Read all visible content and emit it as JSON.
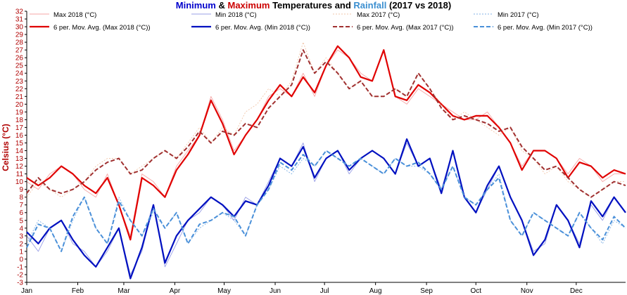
{
  "chart_data": {
    "type": "line",
    "title": {
      "parts": [
        {
          "text": "Minimum",
          "color": "#0000cc"
        },
        {
          "text": " & ",
          "color": "#000000"
        },
        {
          "text": "Maximum",
          "color": "#cc0000"
        },
        {
          "text": " Temperatures and ",
          "color": "#000000"
        },
        {
          "text": "Rainfall",
          "color": "#3b8fd0"
        },
        {
          "text": " (2017 vs 2018)",
          "color": "#000000"
        }
      ]
    },
    "ylabel": "Celsius (°C)",
    "ylim": [
      -3,
      32
    ],
    "yticks": [
      -3,
      -2,
      -1,
      0,
      1,
      2,
      3,
      4,
      5,
      6,
      7,
      8,
      9,
      10,
      11,
      12,
      13,
      14,
      15,
      16,
      17,
      18,
      19,
      20,
      21,
      22,
      23,
      24,
      25,
      26,
      27,
      28,
      29,
      30,
      31,
      32
    ],
    "xlim": [
      1,
      365
    ],
    "months": [
      "Jan",
      "Feb",
      "Mar",
      "Apr",
      "May",
      "Jun",
      "Jul",
      "Aug",
      "Sep",
      "Oct",
      "Nov",
      "Dec"
    ],
    "month_starts": [
      1,
      32,
      60,
      91,
      121,
      152,
      182,
      213,
      244,
      274,
      305,
      335
    ],
    "grid": false,
    "legend": "top",
    "colors": {
      "max2018": "#e00000",
      "min2018": "#0010c0",
      "max2017": "#a03030",
      "min2017": "#4a90d9"
    },
    "series": [
      {
        "name": "Max 2018 (°C)",
        "x": [
          1,
          8,
          15,
          22,
          29,
          36,
          43,
          50,
          57,
          64,
          71,
          78,
          85,
          92,
          99,
          106,
          113,
          120,
          127,
          134,
          141,
          148,
          155,
          162,
          169,
          176,
          183,
          190,
          197,
          204,
          211,
          218,
          225,
          232,
          239,
          246,
          253,
          260,
          267,
          274,
          281,
          288,
          295,
          302,
          309,
          316,
          323,
          330,
          337,
          344,
          351,
          358,
          365
        ],
        "values": [
          10,
          9,
          11,
          12,
          11,
          9,
          8,
          11,
          7,
          3,
          11,
          10,
          8,
          12,
          14,
          16,
          21,
          18,
          14,
          16,
          18,
          21,
          22,
          21,
          24,
          21,
          25,
          27,
          26,
          24,
          23,
          27,
          21,
          20,
          22,
          21,
          20,
          19,
          18,
          18,
          19,
          17,
          15,
          12,
          14,
          14,
          13,
          11,
          13,
          12,
          10,
          11,
          11
        ]
      },
      {
        "name": "6 per. Mov. Avg. (Max 2018 (°C))",
        "x": [
          1,
          8,
          15,
          22,
          29,
          36,
          43,
          50,
          57,
          64,
          71,
          78,
          85,
          92,
          99,
          106,
          113,
          120,
          127,
          134,
          141,
          148,
          155,
          162,
          169,
          176,
          183,
          190,
          197,
          204,
          211,
          218,
          225,
          232,
          239,
          246,
          253,
          260,
          267,
          274,
          281,
          288,
          295,
          302,
          309,
          316,
          323,
          330,
          337,
          344,
          351,
          358,
          365
        ],
        "values": [
          10.5,
          9.5,
          10.5,
          12,
          11,
          9.5,
          8.5,
          10.5,
          7,
          2.5,
          10.5,
          9.5,
          8,
          11.5,
          13.5,
          16,
          20.5,
          17.5,
          13.5,
          16,
          18,
          20.5,
          22.5,
          21,
          23.5,
          21.5,
          25,
          27.5,
          26,
          23.5,
          23,
          27,
          21,
          20.5,
          22.5,
          21.5,
          20,
          18.5,
          18,
          18.5,
          18.5,
          17,
          15,
          11.5,
          14,
          14,
          13,
          10.5,
          12.5,
          12,
          10.5,
          11.5,
          11
        ]
      },
      {
        "name": "Min 2018 (°C)",
        "x": [
          1,
          8,
          15,
          22,
          29,
          36,
          43,
          50,
          57,
          64,
          71,
          78,
          85,
          92,
          99,
          106,
          113,
          120,
          127,
          134,
          141,
          148,
          155,
          162,
          169,
          176,
          183,
          190,
          197,
          204,
          211,
          218,
          225,
          232,
          239,
          246,
          253,
          260,
          267,
          274,
          281,
          288,
          295,
          302,
          309,
          316,
          323,
          330,
          337,
          344,
          351,
          358,
          365
        ],
        "values": [
          3,
          1,
          4,
          5,
          2,
          1,
          -1,
          1,
          4,
          -2,
          1,
          7,
          -1,
          2,
          5,
          6,
          8,
          7,
          5,
          8,
          7,
          10,
          13,
          12,
          15,
          10,
          13,
          14,
          11,
          13,
          14,
          13,
          11,
          15,
          12,
          13,
          9,
          14,
          8,
          6,
          9,
          12,
          8,
          5,
          1,
          2,
          7,
          5,
          2,
          7,
          5,
          8,
          6
        ]
      },
      {
        "name": "6 per. Mov. Avg. (Min 2018 (°C))",
        "x": [
          1,
          8,
          15,
          22,
          29,
          36,
          43,
          50,
          57,
          64,
          71,
          78,
          85,
          92,
          99,
          106,
          113,
          120,
          127,
          134,
          141,
          148,
          155,
          162,
          169,
          176,
          183,
          190,
          197,
          204,
          211,
          218,
          225,
          232,
          239,
          246,
          253,
          260,
          267,
          274,
          281,
          288,
          295,
          302,
          309,
          316,
          323,
          330,
          337,
          344,
          351,
          358,
          365
        ],
        "values": [
          3.5,
          2,
          4,
          5,
          2.5,
          0.5,
          -1,
          1.5,
          4,
          -2.5,
          1.5,
          7,
          -0.5,
          3,
          5,
          6.5,
          8,
          7,
          5.5,
          7.5,
          7,
          9.5,
          13,
          12,
          14.5,
          10.5,
          13,
          14,
          11.5,
          13,
          14,
          13,
          11,
          15.5,
          12,
          13,
          8.5,
          14,
          8,
          6,
          9.5,
          12,
          8,
          5,
          0.5,
          2.5,
          7,
          5,
          1.5,
          7.5,
          5.5,
          8,
          6
        ]
      },
      {
        "name": "Max 2017 (°C)",
        "x": [
          1,
          8,
          15,
          22,
          29,
          36,
          43,
          50,
          57,
          64,
          71,
          78,
          85,
          92,
          99,
          106,
          113,
          120,
          127,
          134,
          141,
          148,
          155,
          162,
          169,
          176,
          183,
          190,
          197,
          204,
          211,
          218,
          225,
          232,
          239,
          246,
          253,
          260,
          267,
          274,
          281,
          288,
          295,
          302,
          309,
          316,
          323,
          330,
          337,
          344,
          351,
          358,
          365
        ],
        "values": [
          8,
          10,
          9,
          8,
          9,
          10,
          12,
          13,
          13,
          11,
          12,
          13,
          14,
          13,
          15,
          17,
          15,
          17,
          16,
          19,
          20,
          22,
          21,
          23,
          28,
          24,
          26,
          24,
          22,
          23,
          21,
          21,
          22,
          21,
          24,
          22,
          20,
          18,
          19,
          18,
          17,
          16,
          17,
          14,
          13,
          11,
          12,
          10,
          9,
          8,
          9,
          10,
          10
        ]
      },
      {
        "name": "6 per. Mov. Avg. (Max 2017 (°C))",
        "x": [
          1,
          8,
          15,
          22,
          29,
          36,
          43,
          50,
          57,
          64,
          71,
          78,
          85,
          92,
          99,
          106,
          113,
          120,
          127,
          134,
          141,
          148,
          155,
          162,
          169,
          176,
          183,
          190,
          197,
          204,
          211,
          218,
          225,
          232,
          239,
          246,
          253,
          260,
          267,
          274,
          281,
          288,
          295,
          302,
          309,
          316,
          323,
          330,
          337,
          344,
          351,
          358,
          365
        ],
        "values": [
          8.5,
          10.5,
          9,
          8.5,
          9,
          10,
          11.5,
          12.5,
          13,
          11,
          11.5,
          13,
          14,
          13,
          14.5,
          16.5,
          15,
          16.5,
          16,
          17.5,
          17,
          19.5,
          21,
          22.5,
          27,
          24,
          25.5,
          24,
          22,
          23,
          21,
          21,
          22,
          21,
          24,
          22,
          19.5,
          18,
          18.5,
          18,
          17.5,
          16.5,
          17,
          14.5,
          13,
          11.5,
          12,
          10.5,
          9,
          8,
          9,
          10,
          9.5
        ]
      },
      {
        "name": "Min 2017 (°C)",
        "x": [
          1,
          8,
          15,
          22,
          29,
          36,
          43,
          50,
          57,
          64,
          71,
          78,
          85,
          92,
          99,
          106,
          113,
          120,
          127,
          134,
          141,
          148,
          155,
          162,
          169,
          176,
          183,
          190,
          197,
          204,
          211,
          218,
          225,
          232,
          239,
          246,
          253,
          260,
          267,
          274,
          281,
          288,
          295,
          302,
          309,
          316,
          323,
          330,
          337,
          344,
          351,
          358,
          365
        ],
        "values": [
          2,
          5,
          4,
          1,
          5,
          8,
          4,
          2,
          8,
          5,
          3,
          6,
          4,
          6,
          2,
          4,
          5,
          6,
          5,
          3,
          7,
          9,
          12,
          11,
          13,
          12,
          14,
          13,
          12,
          13,
          12,
          11,
          13,
          12,
          12,
          11,
          9,
          12,
          8,
          7,
          9,
          11,
          5,
          3,
          6,
          5,
          4,
          3,
          6,
          4,
          2,
          5,
          4
        ]
      },
      {
        "name": "6 per. Mov. Avg. (Min 2017 (°C))",
        "x": [
          1,
          8,
          15,
          22,
          29,
          36,
          43,
          50,
          57,
          64,
          71,
          78,
          85,
          92,
          99,
          106,
          113,
          120,
          127,
          134,
          141,
          148,
          155,
          162,
          169,
          176,
          183,
          190,
          197,
          204,
          211,
          218,
          225,
          232,
          239,
          246,
          253,
          260,
          267,
          274,
          281,
          288,
          295,
          302,
          309,
          316,
          323,
          330,
          337,
          344,
          351,
          358,
          365
        ],
        "values": [
          1.5,
          4.5,
          4,
          1,
          5.5,
          8,
          4,
          2,
          7.5,
          5,
          3,
          6.5,
          4,
          6,
          2,
          4.5,
          5,
          6,
          5.5,
          3,
          7,
          9,
          12.5,
          11.5,
          13.5,
          12,
          14,
          13,
          12,
          13,
          12,
          11,
          13,
          12,
          12.5,
          11,
          9,
          12,
          8,
          7,
          9,
          10.5,
          5,
          3,
          6,
          5,
          4,
          3,
          6,
          4,
          2.5,
          5.5,
          4
        ]
      }
    ]
  }
}
